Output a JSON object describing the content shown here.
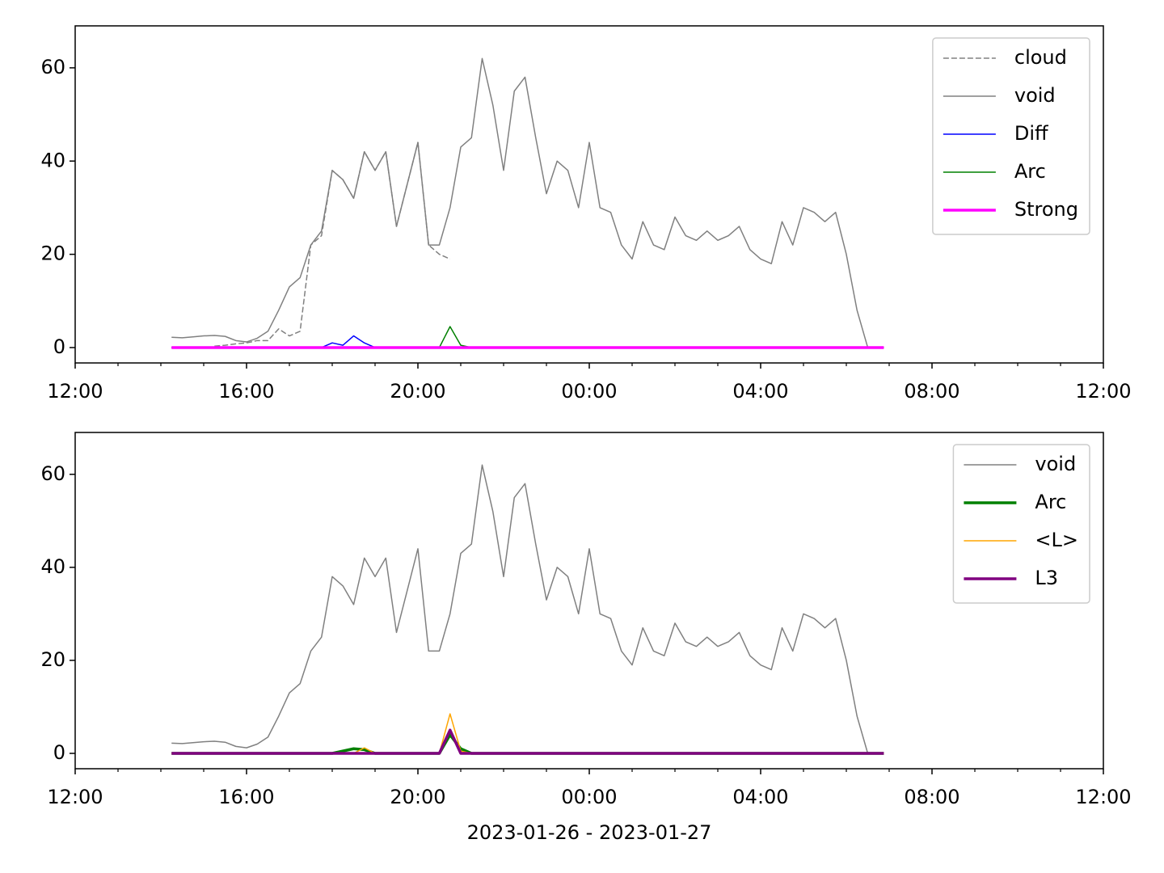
{
  "chart_data": [
    {
      "type": "line",
      "x": [
        14.25,
        14.5,
        14.75,
        15,
        15.25,
        15.5,
        15.75,
        16,
        16.25,
        16.5,
        16.75,
        17,
        17.25,
        17.5,
        17.75,
        18,
        18.25,
        18.5,
        18.75,
        19,
        19.25,
        19.5,
        19.75,
        20,
        20.25,
        20.5,
        20.75,
        21,
        21.25,
        21.5,
        21.75,
        22,
        22.25,
        22.5,
        22.75,
        23,
        23.25,
        23.5,
        23.75,
        24,
        24.25,
        24.5,
        24.75,
        25,
        25.25,
        25.5,
        25.75,
        26,
        26.25,
        26.5,
        26.75,
        27,
        27.25,
        27.5,
        27.75,
        28,
        28.25,
        28.5,
        28.75,
        29,
        29.25,
        29.5,
        29.75,
        30,
        30.25,
        30.5,
        30.75,
        30.875
      ],
      "series": [
        {
          "name": "cloud",
          "color": "#808080",
          "linestyle": "dashed",
          "linewidth": 1.5,
          "values": [
            null,
            null,
            null,
            null,
            0.3,
            0.5,
            0.8,
            1,
            1.5,
            1.5,
            4,
            2.5,
            3.5,
            22,
            24,
            38,
            36,
            32,
            42,
            38,
            42,
            26,
            35,
            44,
            22,
            20,
            19,
            null,
            null,
            null,
            null,
            null,
            null,
            null,
            null,
            null,
            null,
            null,
            null,
            null,
            null,
            null,
            null,
            null,
            null,
            null,
            null,
            null,
            null,
            null,
            null,
            null,
            null,
            null,
            null,
            null,
            null,
            null,
            null,
            null,
            null,
            null,
            null,
            null,
            null,
            null,
            null,
            null
          ]
        },
        {
          "name": "void",
          "color": "#808080",
          "linestyle": "solid",
          "linewidth": 1.5,
          "values": [
            2.2,
            2.1,
            2.3,
            2.5,
            2.6,
            2.4,
            1.5,
            1.2,
            2,
            3.5,
            8,
            13,
            15,
            22,
            25,
            38,
            36,
            32,
            42,
            38,
            42,
            26,
            35,
            44,
            22,
            22,
            30,
            43,
            45,
            62,
            52,
            38,
            55,
            58,
            45,
            33,
            40,
            38,
            30,
            44,
            30,
            29,
            22,
            19,
            27,
            22,
            21,
            28,
            24,
            23,
            25,
            23,
            24,
            26,
            21,
            19,
            18,
            27,
            22,
            30,
            29,
            27,
            29,
            20,
            8,
            0,
            null,
            null
          ]
        },
        {
          "name": "Diff",
          "color": "#0000ff",
          "linestyle": "solid",
          "linewidth": 1.5,
          "values": [
            0,
            0,
            0,
            0,
            0,
            0,
            0,
            0,
            0,
            0,
            0,
            0,
            0,
            0,
            0,
            1,
            0.5,
            2.5,
            1,
            0,
            0,
            0,
            0,
            0,
            0,
            0,
            0,
            0,
            0,
            0,
            0,
            0,
            0,
            0,
            0,
            0,
            0,
            0,
            0,
            0,
            0,
            0,
            0,
            0,
            0,
            0,
            0,
            0,
            0,
            0,
            0,
            0,
            0,
            0,
            0,
            0,
            0,
            0,
            0,
            0,
            0,
            0,
            0,
            0,
            0,
            0,
            0,
            0
          ]
        },
        {
          "name": "Arc",
          "color": "#008000",
          "linestyle": "solid",
          "linewidth": 1.5,
          "values": [
            0,
            0,
            0,
            0,
            0,
            0,
            0,
            0,
            0,
            0,
            0,
            0,
            0,
            0,
            0,
            0,
            0,
            0,
            0,
            0,
            0,
            0,
            0,
            0,
            0,
            0,
            4.5,
            0.5,
            0,
            0,
            0,
            0,
            0,
            0,
            0,
            0,
            0,
            0,
            0,
            0,
            0,
            0,
            0,
            0,
            0,
            0,
            0,
            0,
            0,
            0,
            0,
            0,
            0,
            0,
            0,
            0,
            0,
            0,
            0,
            0,
            0,
            0,
            0,
            0,
            0,
            0,
            0,
            0
          ]
        },
        {
          "name": "Strong",
          "color": "#ff00ff",
          "linestyle": "solid",
          "linewidth": 3.5,
          "values": [
            0,
            0,
            0,
            0,
            0,
            0,
            0,
            0,
            0,
            0,
            0,
            0,
            0,
            0,
            0,
            0,
            0,
            0,
            0,
            0,
            0,
            0,
            0,
            0,
            0,
            0,
            0,
            0,
            0,
            0,
            0,
            0,
            0,
            0,
            0,
            0,
            0,
            0,
            0,
            0,
            0,
            0,
            0,
            0,
            0,
            0,
            0,
            0,
            0,
            0,
            0,
            0,
            0,
            0,
            0,
            0,
            0,
            0,
            0,
            0,
            0,
            0,
            0,
            0,
            0,
            0,
            0,
            0
          ]
        }
      ],
      "xlim": [
        12,
        36
      ],
      "xticks": [
        {
          "value": 12,
          "label": "12:00"
        },
        {
          "value": 16,
          "label": "16:00"
        },
        {
          "value": 20,
          "label": "20:00"
        },
        {
          "value": 24,
          "label": "00:00"
        },
        {
          "value": 28,
          "label": "04:00"
        },
        {
          "value": 32,
          "label": "08:00"
        },
        {
          "value": 36,
          "label": "12:00"
        }
      ],
      "xminorticks": [
        13,
        14,
        15,
        17,
        18,
        19,
        21,
        22,
        23,
        25,
        26,
        27,
        29,
        30,
        31,
        33,
        34,
        35
      ],
      "ylim": [
        -3.3,
        69
      ],
      "yticks": [
        0,
        20,
        40,
        60
      ],
      "legend": "upper right"
    },
    {
      "type": "line",
      "x": [
        14.25,
        14.5,
        14.75,
        15,
        15.25,
        15.5,
        15.75,
        16,
        16.25,
        16.5,
        16.75,
        17,
        17.25,
        17.5,
        17.75,
        18,
        18.25,
        18.5,
        18.75,
        19,
        19.25,
        19.5,
        19.75,
        20,
        20.25,
        20.5,
        20.75,
        21,
        21.25,
        21.5,
        21.75,
        22,
        22.25,
        22.5,
        22.75,
        23,
        23.25,
        23.5,
        23.75,
        24,
        24.25,
        24.5,
        24.75,
        25,
        25.25,
        25.5,
        25.75,
        26,
        26.25,
        26.5,
        26.75,
        27,
        27.25,
        27.5,
        27.75,
        28,
        28.25,
        28.5,
        28.75,
        29,
        29.25,
        29.5,
        29.75,
        30,
        30.25,
        30.5,
        30.75,
        30.875
      ],
      "series": [
        {
          "name": "void",
          "color": "#808080",
          "linestyle": "solid",
          "linewidth": 1.5,
          "values": [
            2.2,
            2.1,
            2.3,
            2.5,
            2.6,
            2.4,
            1.5,
            1.2,
            2,
            3.5,
            8,
            13,
            15,
            22,
            25,
            38,
            36,
            32,
            42,
            38,
            42,
            26,
            35,
            44,
            22,
            22,
            30,
            43,
            45,
            62,
            52,
            38,
            55,
            58,
            45,
            33,
            40,
            38,
            30,
            44,
            30,
            29,
            22,
            19,
            27,
            22,
            21,
            28,
            24,
            23,
            25,
            23,
            24,
            26,
            21,
            19,
            18,
            27,
            22,
            30,
            29,
            27,
            29,
            20,
            8,
            0,
            null,
            null
          ]
        },
        {
          "name": "Arc",
          "color": "#008000",
          "linestyle": "solid",
          "linewidth": 3.5,
          "values": [
            0,
            0,
            0,
            0,
            0,
            0,
            0,
            0,
            0,
            0,
            0,
            0,
            0,
            0,
            0,
            0,
            0.5,
            1,
            0.8,
            0,
            0,
            0,
            0,
            0,
            0,
            0,
            4,
            1,
            0,
            0,
            0,
            0,
            0,
            0,
            0,
            0,
            0,
            0,
            0,
            0,
            0,
            0,
            0,
            0,
            0,
            0,
            0,
            0,
            0,
            0,
            0,
            0,
            0,
            0,
            0,
            0,
            0,
            0,
            0,
            0,
            0,
            0,
            0,
            0,
            0,
            0,
            0,
            0
          ]
        },
        {
          "name": "<L>",
          "color": "#ffa500",
          "linestyle": "solid",
          "linewidth": 1.5,
          "values": [
            0,
            0,
            0,
            0,
            0,
            0,
            0,
            0,
            0,
            0,
            0,
            0,
            0,
            0,
            0,
            0,
            0,
            0,
            1.2,
            0,
            0,
            0,
            0,
            0,
            0,
            0,
            8.5,
            0.5,
            0,
            0,
            0,
            0,
            0,
            0,
            0,
            0,
            0,
            0,
            0,
            0,
            0,
            0,
            0,
            0,
            0,
            0,
            0,
            0,
            0,
            0,
            0,
            0,
            0,
            0,
            0,
            0,
            0,
            0,
            0,
            0,
            0,
            0,
            0,
            0,
            0,
            0,
            0,
            0
          ]
        },
        {
          "name": "L3",
          "color": "#800080",
          "linestyle": "solid",
          "linewidth": 3.5,
          "values": [
            0,
            0,
            0,
            0,
            0,
            0,
            0,
            0,
            0,
            0,
            0,
            0,
            0,
            0,
            0,
            0,
            0,
            0,
            0,
            0,
            0,
            0,
            0,
            0,
            0,
            0,
            5,
            0,
            0,
            0,
            0,
            0,
            0,
            0,
            0,
            0,
            0,
            0,
            0,
            0,
            0,
            0,
            0,
            0,
            0,
            0,
            0,
            0,
            0,
            0,
            0,
            0,
            0,
            0,
            0,
            0,
            0,
            0,
            0,
            0,
            0,
            0,
            0,
            0,
            0,
            0,
            0,
            0
          ]
        }
      ],
      "xlabel": "2023-01-26 - 2023-01-27",
      "xlim": [
        12,
        36
      ],
      "xticks": [
        {
          "value": 12,
          "label": "12:00"
        },
        {
          "value": 16,
          "label": "16:00"
        },
        {
          "value": 20,
          "label": "20:00"
        },
        {
          "value": 24,
          "label": "00:00"
        },
        {
          "value": 28,
          "label": "04:00"
        },
        {
          "value": 32,
          "label": "08:00"
        },
        {
          "value": 36,
          "label": "12:00"
        }
      ],
      "xminorticks": [
        13,
        14,
        15,
        17,
        18,
        19,
        21,
        22,
        23,
        25,
        26,
        27,
        29,
        30,
        31,
        33,
        34,
        35
      ],
      "ylim": [
        -3.3,
        69
      ],
      "yticks": [
        0,
        20,
        40,
        60
      ],
      "legend": "upper right"
    }
  ]
}
